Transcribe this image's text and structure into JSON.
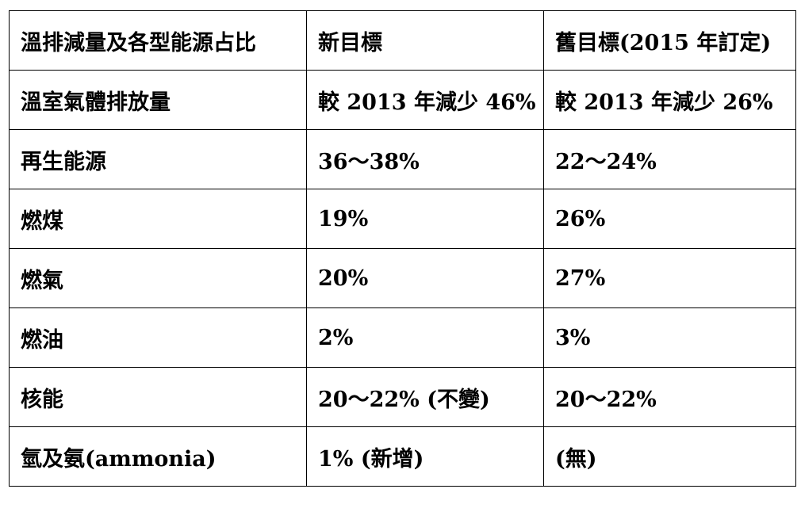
{
  "table": {
    "header": [
      "溫排減量及各型能源占比",
      "新目標",
      "舊目標(2015 年訂定)"
    ],
    "rows": [
      [
        "溫室氣體排放量",
        "較 2013 年減少 46%",
        "較 2013 年減少 26%"
      ],
      [
        "再生能源",
        "36～38%",
        "22～24%"
      ],
      [
        "燃煤",
        "19%",
        "26%"
      ],
      [
        "燃氣",
        "20%",
        "27%"
      ],
      [
        "燃油",
        "2%",
        "3%"
      ],
      [
        "核能",
        "20～22% (不變)",
        "20～22%"
      ],
      [
        "氫及氨(ammonia)",
        "1% (新增)",
        "(無)"
      ]
    ]
  }
}
